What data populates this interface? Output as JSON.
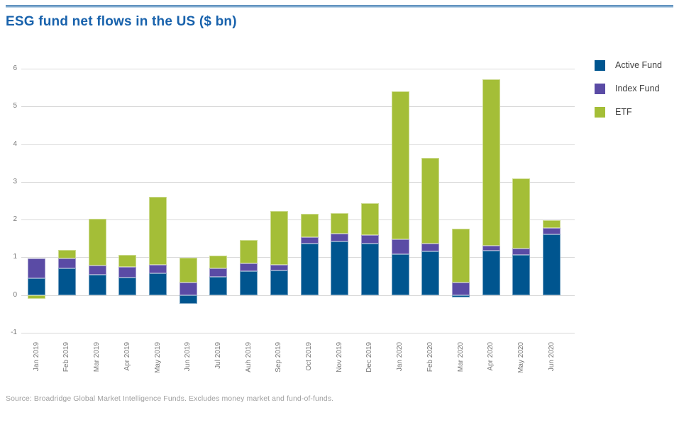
{
  "title": "ESG fund net flows in the US ($ bn)",
  "source": "Source: Broadridge Global Market Intelligence Funds. Excludes money market and fund-of-funds.",
  "colors": {
    "title_text": "#1862AC",
    "rule_top": "#6294C0",
    "rule_bottom": "#BED5E9",
    "grid": "#D9D9D9",
    "axis_text": "#777777",
    "legend_text": "#404040",
    "source_text": "#A0A0A0",
    "active_fund": "#00558F",
    "index_fund": "#5A4BA5",
    "etf": "#A4BE37"
  },
  "chart_data": {
    "type": "bar",
    "stacked": true,
    "title": "ESG fund net flows in the US ($ bn)",
    "xlabel": "",
    "ylabel": "",
    "ylim": [
      -1,
      6
    ],
    "yticks": [
      6,
      5,
      4,
      3,
      2,
      1,
      0,
      -1
    ],
    "grid": "horizontal",
    "legend_position": "right",
    "categories": [
      "Jan 2019",
      "Feb 2019",
      "Mar 2019",
      "Apr 2019",
      "May 2019",
      "Jun 2019",
      "Jul 2019",
      "Auh 2019",
      "Sep 2019",
      "Oct 2019",
      "Nov 2019",
      "Dec 2019",
      "Jan 2020",
      "Feb 2020",
      "Mar 2020",
      "Apr 2020",
      "May 2020",
      "Jun 2020"
    ],
    "series": [
      {
        "name": "Active Fund",
        "color": "#00558F",
        "values": [
          0.45,
          0.7,
          0.53,
          0.47,
          0.58,
          -0.23,
          0.48,
          0.64,
          0.65,
          1.36,
          1.43,
          1.37,
          1.09,
          1.16,
          -0.07,
          1.17,
          1.07,
          1.6
        ]
      },
      {
        "name": "Index Fund",
        "color": "#5A4BA5",
        "values": [
          0.52,
          0.27,
          0.26,
          0.28,
          0.22,
          0.33,
          0.22,
          0.19,
          0.15,
          0.17,
          0.2,
          0.22,
          0.38,
          0.21,
          0.33,
          0.14,
          0.17,
          0.17
        ]
      },
      {
        "name": "ETF",
        "color": "#A4BE37",
        "values": [
          -0.1,
          0.23,
          1.24,
          0.32,
          1.8,
          0.66,
          0.34,
          0.63,
          1.42,
          0.62,
          0.55,
          0.84,
          3.93,
          2.26,
          1.43,
          4.4,
          1.86,
          0.21
        ]
      }
    ]
  }
}
